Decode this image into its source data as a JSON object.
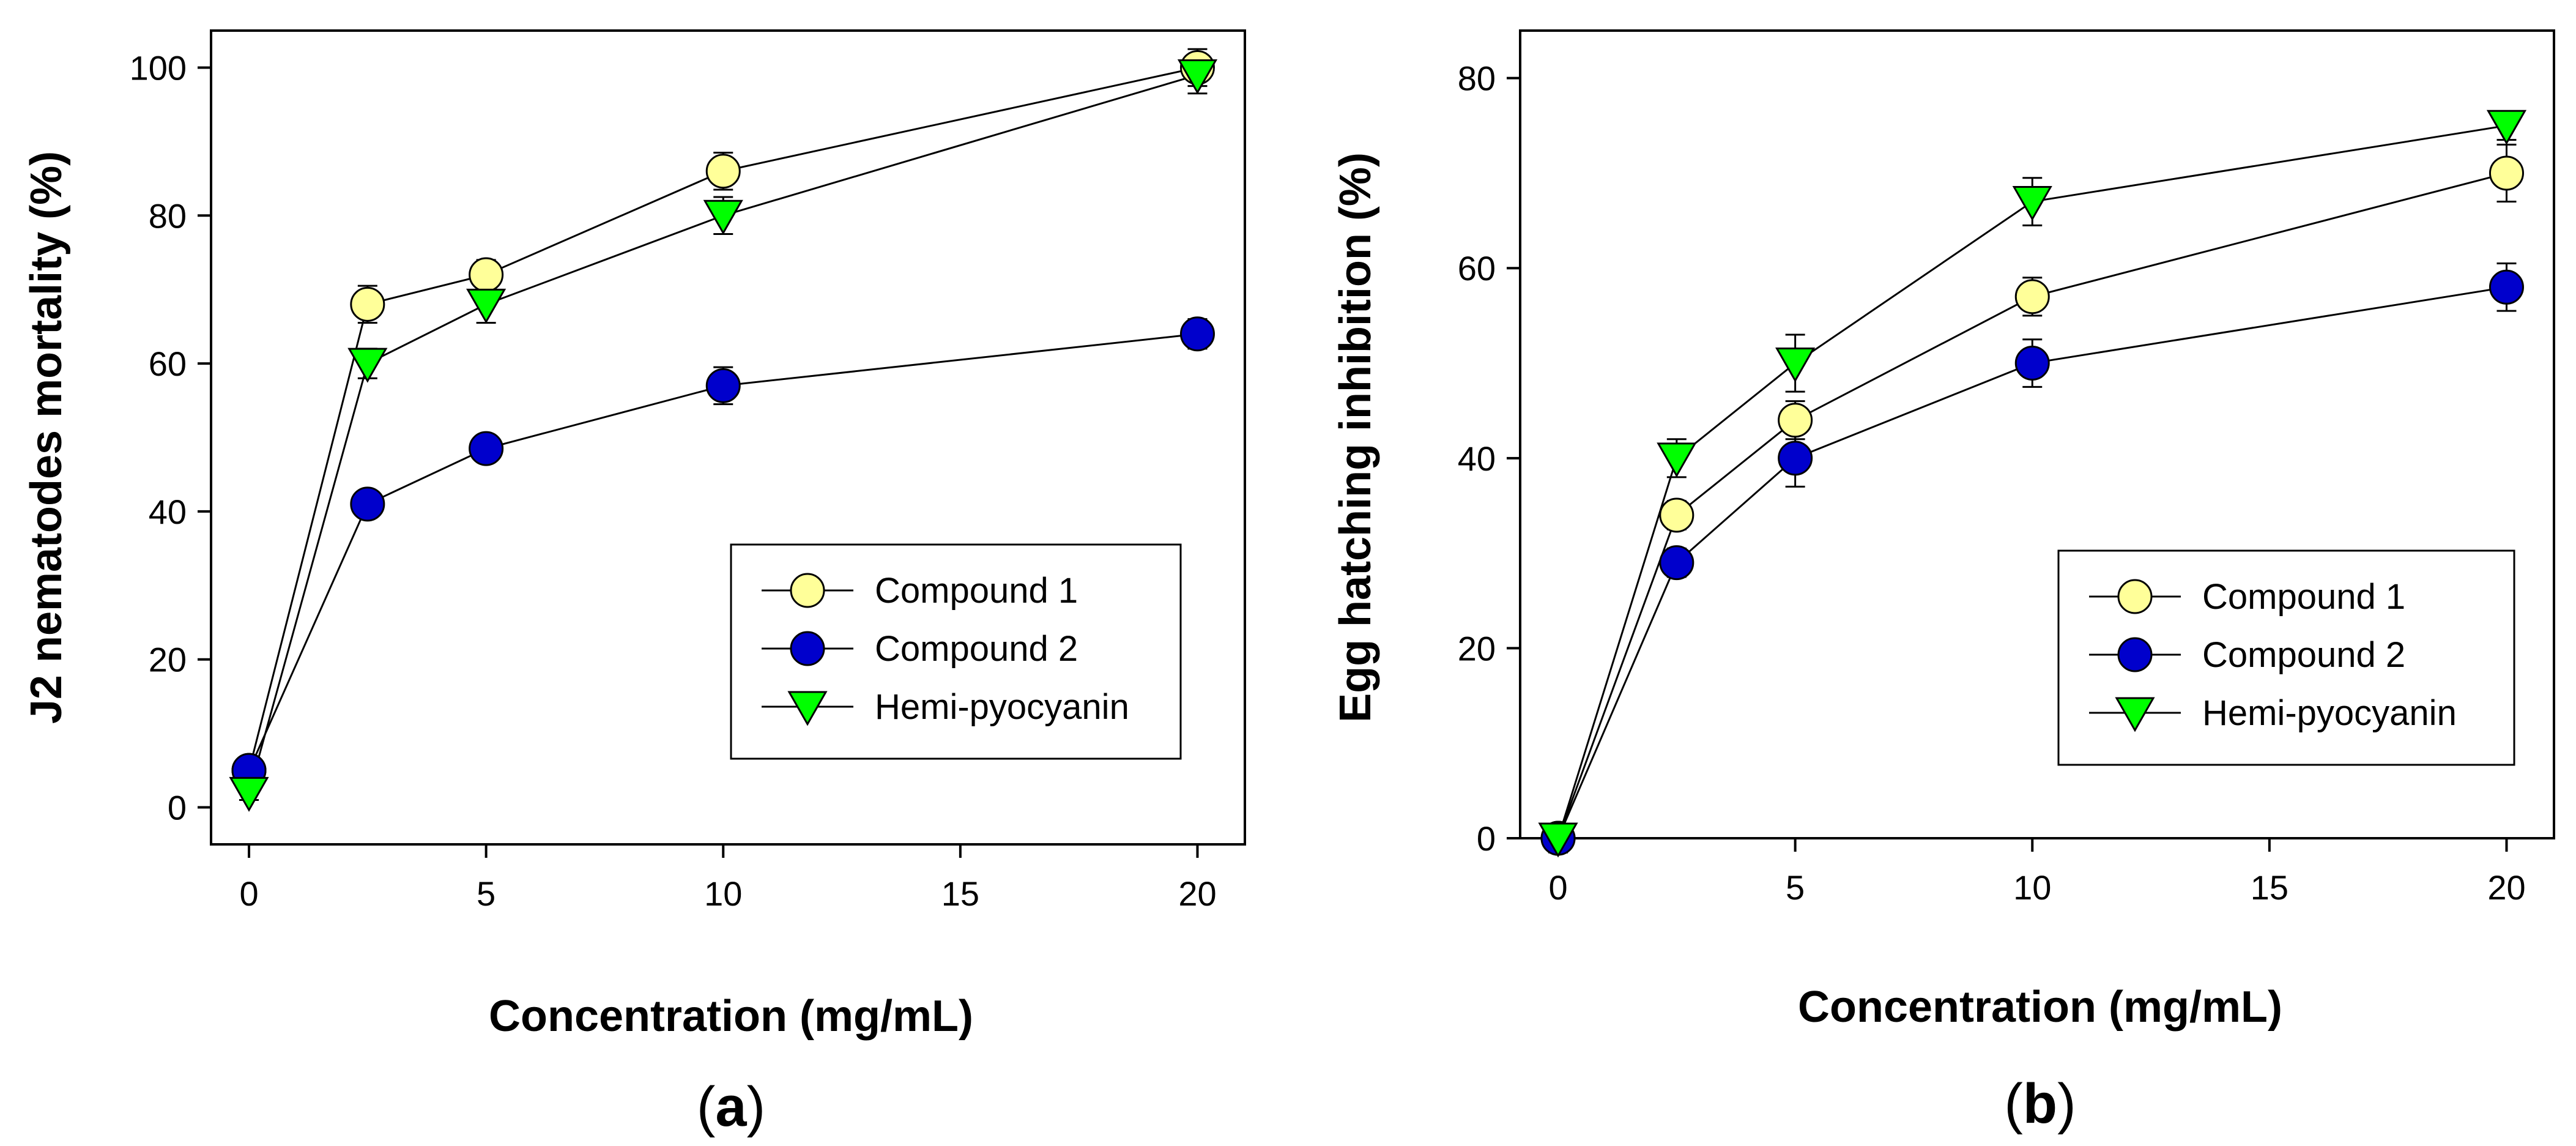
{
  "chart_data": [
    {
      "type": "line",
      "panel_label_open": "(",
      "panel_label_letter": "a",
      "panel_label_close": ")",
      "xlabel": "Concentration (mg/mL)",
      "ylabel": "J2 nematodes mortality (%)",
      "xlim": [
        -0.8,
        21
      ],
      "ylim": [
        -5,
        105
      ],
      "xticks": [
        0,
        5,
        10,
        15,
        20
      ],
      "yticks": [
        0,
        20,
        40,
        60,
        80,
        100
      ],
      "x": [
        0,
        2.5,
        5,
        10,
        20
      ],
      "grid": false,
      "legend_position": "lower-right",
      "series": [
        {
          "name": "Compound 1",
          "marker": "circle",
          "color": "#ffff99",
          "values": [
            5,
            68,
            72,
            86,
            100
          ],
          "errors": [
            1,
            2.5,
            2,
            2.5,
            2.5
          ]
        },
        {
          "name": "Compound 2",
          "marker": "circle",
          "color": "#0000cc",
          "values": [
            5,
            41,
            48.5,
            57,
            64
          ],
          "errors": [
            1,
            1.5,
            1.5,
            2.5,
            2
          ]
        },
        {
          "name": "Hemi-pyocyanin",
          "marker": "triangle-down",
          "color": "#00ff00",
          "values": [
            2,
            60,
            68,
            80,
            99
          ],
          "errors": [
            1,
            2,
            2.5,
            2.5,
            2.5
          ]
        }
      ]
    },
    {
      "type": "line",
      "panel_label_open": "(",
      "panel_label_letter": "b",
      "panel_label_close": ")",
      "xlabel": "Concentration (mg/mL)",
      "ylabel": "Egg hatching inhibition (%)",
      "xlim": [
        -0.8,
        21
      ],
      "ylim": [
        0,
        85
      ],
      "xticks": [
        0,
        5,
        10,
        15,
        20
      ],
      "yticks": [
        0,
        20,
        40,
        60,
        80
      ],
      "x": [
        0,
        2.5,
        5,
        10,
        20
      ],
      "grid": false,
      "legend_position": "lower-right",
      "series": [
        {
          "name": "Compound 1",
          "marker": "circle",
          "color": "#ffff99",
          "values": [
            0,
            34,
            44,
            57,
            70
          ],
          "errors": [
            1.5,
            1.5,
            2,
            2,
            3
          ]
        },
        {
          "name": "Compound 2",
          "marker": "circle",
          "color": "#0000cc",
          "values": [
            0,
            29,
            40,
            50,
            58
          ],
          "errors": [
            1,
            1.5,
            3,
            2.5,
            2.5
          ]
        },
        {
          "name": "Hemi-pyocyanin",
          "marker": "triangle-down",
          "color": "#00ff00",
          "values": [
            0,
            40,
            50,
            67,
            75
          ],
          "errors": [
            1,
            2,
            3,
            2.5,
            1.5
          ]
        }
      ]
    }
  ]
}
